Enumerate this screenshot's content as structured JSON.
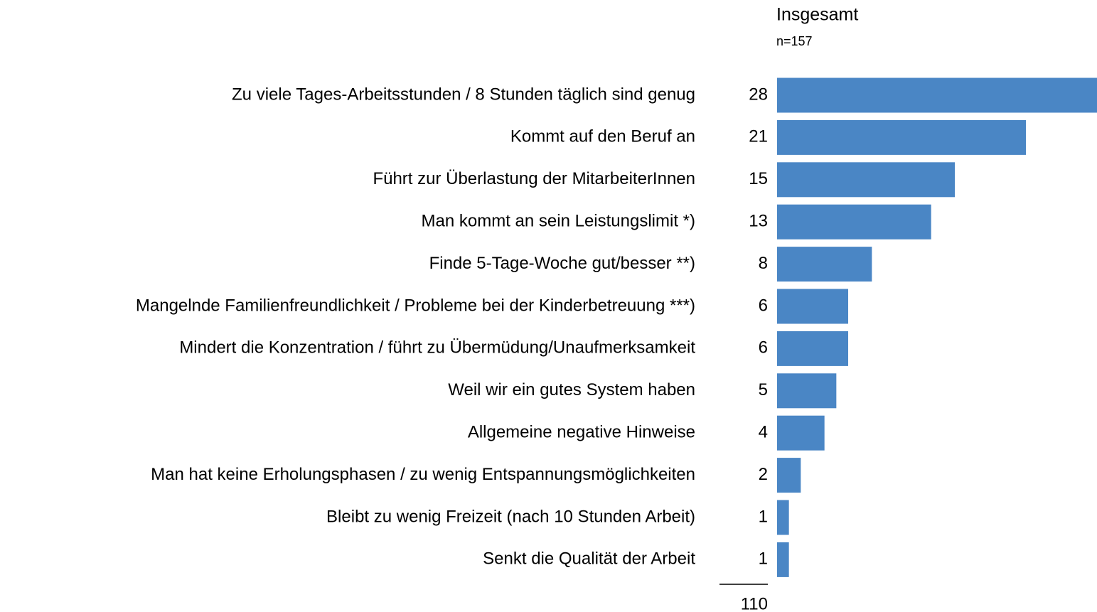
{
  "chart_data": {
    "type": "bar",
    "orientation": "horizontal",
    "title": "Insgesamt",
    "subtitle": "n=157",
    "categories": [
      "Zu viele Tages-Arbeitsstunden / 8 Stunden täglich sind genug",
      "Kommt auf den Beruf an",
      "Führt zur Überlastung der MitarbeiterInnen",
      "Man kommt an sein Leistungslimit *)",
      "Finde 5-Tage-Woche gut/besser **)",
      "Mangelnde Familienfreundlichkeit / Probleme bei der Kinderbetreuung ***)",
      "Mindert die Konzentration / führt zu Übermüdung/Unaufmerksamkeit",
      "Weil wir ein gutes System haben",
      "Allgemeine negative Hinweise",
      "Man hat keine Erholungsphasen / zu wenig Entspannungsmöglichkeiten",
      "Bleibt zu wenig Freizeit (nach 10 Stunden Arbeit)",
      "Senkt die Qualität der Arbeit"
    ],
    "values": [
      28,
      21,
      15,
      13,
      8,
      6,
      6,
      5,
      4,
      2,
      1,
      1
    ],
    "color": "#4a86c5",
    "total": 110
  }
}
